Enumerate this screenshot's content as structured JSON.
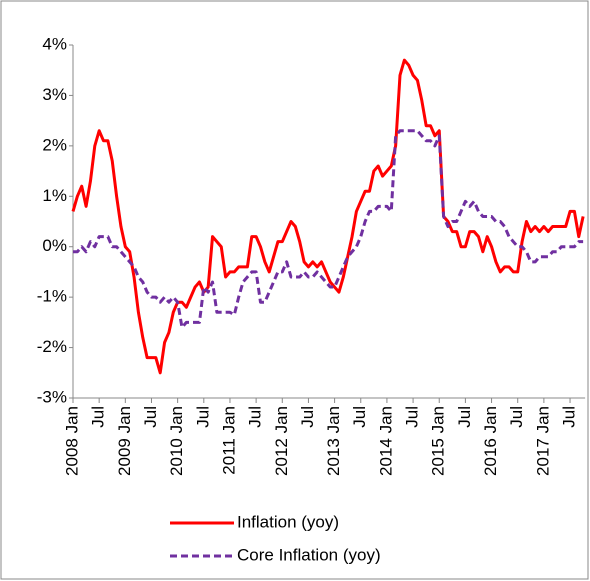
{
  "chart_data": {
    "type": "line",
    "categories": [
      "2008 Jan",
      null,
      null,
      null,
      null,
      null,
      "Jul",
      null,
      null,
      null,
      null,
      null,
      "2009 Jan",
      null,
      null,
      null,
      null,
      null,
      "Jul",
      null,
      null,
      null,
      null,
      null,
      "2010 Jan",
      null,
      null,
      null,
      null,
      null,
      "Jul",
      null,
      null,
      null,
      null,
      null,
      "2011 Jan",
      null,
      null,
      null,
      null,
      null,
      "Jul",
      null,
      null,
      null,
      null,
      null,
      "2012 Jan",
      null,
      null,
      null,
      null,
      null,
      "Jul",
      null,
      null,
      null,
      null,
      null,
      "2013 Jan",
      null,
      null,
      null,
      null,
      null,
      "Jul",
      null,
      null,
      null,
      null,
      null,
      "2014 Jan",
      null,
      null,
      null,
      null,
      null,
      "Jul",
      null,
      null,
      null,
      null,
      null,
      "2015 Jan",
      null,
      null,
      null,
      null,
      null,
      "Jul",
      null,
      null,
      null,
      null,
      null,
      "2016 Jan",
      null,
      null,
      null,
      null,
      null,
      "Jul",
      null,
      null,
      null,
      null,
      null,
      "2017 Jan",
      null,
      null,
      null,
      null,
      null,
      "Jul",
      null,
      null,
      null
    ],
    "series": [
      {
        "name": "Inflation (yoy)",
        "color": "#ff0000",
        "dash": false,
        "values": [
          0.7,
          1.0,
          1.2,
          0.8,
          1.3,
          2.0,
          2.3,
          2.1,
          2.1,
          1.7,
          1.0,
          0.4,
          0.0,
          -0.1,
          -0.6,
          -1.3,
          -1.8,
          -2.2,
          -2.2,
          -2.2,
          -2.5,
          -1.9,
          -1.7,
          -1.3,
          -1.1,
          -1.1,
          -1.2,
          -1.0,
          -0.8,
          -0.7,
          -0.9,
          -0.8,
          0.2,
          0.1,
          0.0,
          -0.6,
          -0.5,
          -0.5,
          -0.4,
          -0.4,
          -0.4,
          0.2,
          0.2,
          0.0,
          -0.3,
          -0.5,
          -0.2,
          0.1,
          0.1,
          0.3,
          0.5,
          0.4,
          0.1,
          -0.3,
          -0.4,
          -0.3,
          -0.4,
          -0.3,
          -0.5,
          -0.7,
          -0.8,
          -0.9,
          -0.6,
          -0.2,
          0.2,
          0.7,
          0.9,
          1.1,
          1.1,
          1.5,
          1.6,
          1.4,
          1.5,
          1.6,
          2.0,
          3.4,
          3.7,
          3.6,
          3.4,
          3.3,
          2.9,
          2.4,
          2.4,
          2.2,
          2.3,
          0.6,
          0.5,
          0.3,
          0.3,
          0.0,
          0.0,
          0.3,
          0.3,
          0.2,
          -0.1,
          0.2,
          0.0,
          -0.3,
          -0.5,
          -0.4,
          -0.4,
          -0.5,
          -0.5,
          0.1,
          0.5,
          0.3,
          0.4,
          0.3,
          0.4,
          0.3,
          0.4,
          0.4,
          0.4,
          0.4,
          0.7,
          0.7,
          0.2,
          0.6
        ]
      },
      {
        "name": "Core Inflation (yoy)",
        "color": "#7030a0",
        "dash": true,
        "values": [
          -0.1,
          -0.1,
          0.0,
          -0.1,
          0.1,
          0.0,
          0.2,
          0.2,
          0.2,
          0.0,
          0.0,
          -0.1,
          -0.2,
          -0.3,
          -0.4,
          -0.6,
          -0.7,
          -0.9,
          -1.0,
          -1.0,
          -1.1,
          -1.0,
          -1.1,
          -1.0,
          -1.1,
          -1.6,
          -1.5,
          -1.5,
          -1.5,
          -1.5,
          -0.8,
          -0.9,
          -0.7,
          -1.3,
          -1.3,
          -1.3,
          -1.3,
          -1.35,
          -1.0,
          -0.7,
          -0.6,
          -0.5,
          -0.5,
          -1.1,
          -1.1,
          -0.9,
          -0.7,
          -0.5,
          -0.5,
          -0.3,
          -0.6,
          -0.6,
          -0.6,
          -0.5,
          -0.6,
          -0.6,
          -0.5,
          -0.6,
          -0.7,
          -0.8,
          -0.8,
          -0.6,
          -0.4,
          -0.2,
          -0.1,
          0.0,
          0.2,
          0.5,
          0.7,
          0.7,
          0.8,
          0.8,
          0.8,
          0.7,
          2.2,
          2.3,
          2.3,
          2.3,
          2.3,
          2.3,
          2.2,
          2.1,
          2.1,
          2.0,
          2.2,
          0.6,
          0.4,
          0.5,
          0.5,
          0.7,
          0.9,
          0.8,
          0.9,
          0.7,
          0.6,
          0.6,
          0.6,
          0.5,
          0.5,
          0.4,
          0.2,
          0.1,
          0.0,
          0.0,
          -0.1,
          -0.3,
          -0.3,
          -0.2,
          -0.2,
          -0.2,
          -0.1,
          -0.1,
          0.0,
          0.0,
          0.0,
          0.0,
          0.1,
          0.1
        ]
      }
    ],
    "ylim": [
      -3,
      4
    ],
    "yticks": [
      {
        "value": -3,
        "label": "-3%"
      },
      {
        "value": -2,
        "label": "-2%"
      },
      {
        "value": -1,
        "label": "-1%"
      },
      {
        "value": 0,
        "label": "0%"
      },
      {
        "value": 1,
        "label": "1%"
      },
      {
        "value": 2,
        "label": "2%"
      },
      {
        "value": 3,
        "label": "3%"
      },
      {
        "value": 4,
        "label": "4%"
      }
    ],
    "grid": false,
    "legend": "bottom"
  }
}
